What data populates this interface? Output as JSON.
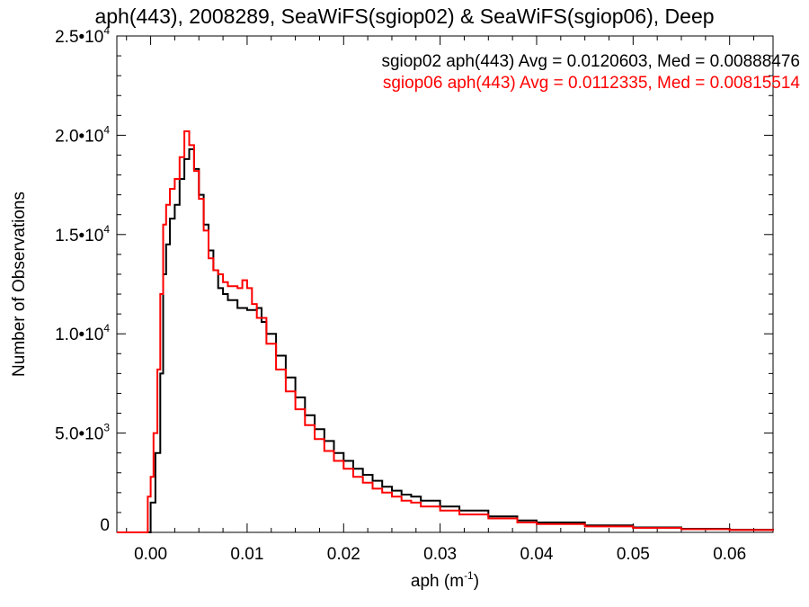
{
  "chart_data": {
    "type": "line",
    "title": "aph(443), 2008289, SeaWiFS(sgiop02) & SeaWiFS(sgiop06), Deep",
    "xlabel": "aph (m",
    "xlabel_exp": "-1",
    "xlabel_close": ")",
    "ylabel": "Number of Observations",
    "xlim": [
      -0.0035,
      0.0645
    ],
    "ylim": [
      0,
      25000
    ],
    "x_ticks": [
      {
        "value": 0.0,
        "label": "0.00"
      },
      {
        "value": 0.01,
        "label": "0.01"
      },
      {
        "value": 0.02,
        "label": "0.02"
      },
      {
        "value": 0.03,
        "label": "0.03"
      },
      {
        "value": 0.04,
        "label": "0.04"
      },
      {
        "value": 0.05,
        "label": "0.05"
      },
      {
        "value": 0.06,
        "label": "0.06"
      }
    ],
    "y_ticks": [
      {
        "value": 0,
        "mant": "0",
        "exp": ""
      },
      {
        "value": 5000,
        "mant": "5.0•10",
        "exp": "3"
      },
      {
        "value": 10000,
        "mant": "1.0•10",
        "exp": "4"
      },
      {
        "value": 15000,
        "mant": "1.5•10",
        "exp": "4"
      },
      {
        "value": 20000,
        "mant": "2.0•10",
        "exp": "4"
      },
      {
        "value": 25000,
        "mant": "2.5•10",
        "exp": "4"
      }
    ],
    "grid": false,
    "legend_position": "top-right",
    "series": [
      {
        "name": "sgiop02 aph(443) Avg = 0.0120603, Med = 0.00888476",
        "color": "#000000",
        "points": [
          [
            -0.0035,
            0
          ],
          [
            -0.0005,
            0
          ],
          [
            0.0,
            1500
          ],
          [
            0.0005,
            4000
          ],
          [
            0.001,
            8000
          ],
          [
            0.0013,
            13000
          ],
          [
            0.0016,
            14500
          ],
          [
            0.002,
            15800
          ],
          [
            0.0025,
            16500
          ],
          [
            0.003,
            17800
          ],
          [
            0.0035,
            18800
          ],
          [
            0.004,
            19300
          ],
          [
            0.0045,
            18300
          ],
          [
            0.005,
            17000
          ],
          [
            0.0055,
            15500
          ],
          [
            0.006,
            14200
          ],
          [
            0.0065,
            13200
          ],
          [
            0.007,
            12300
          ],
          [
            0.0075,
            12000
          ],
          [
            0.008,
            11700
          ],
          [
            0.009,
            11300
          ],
          [
            0.01,
            11200
          ],
          [
            0.011,
            11300
          ],
          [
            0.0115,
            10600
          ],
          [
            0.012,
            10000
          ],
          [
            0.013,
            8900
          ],
          [
            0.014,
            7800
          ],
          [
            0.015,
            6800
          ],
          [
            0.016,
            5900
          ],
          [
            0.017,
            5200
          ],
          [
            0.018,
            4600
          ],
          [
            0.019,
            4000
          ],
          [
            0.02,
            3600
          ],
          [
            0.021,
            3200
          ],
          [
            0.022,
            2900
          ],
          [
            0.023,
            2600
          ],
          [
            0.024,
            2300
          ],
          [
            0.025,
            2100
          ],
          [
            0.026,
            1900
          ],
          [
            0.027,
            1800
          ],
          [
            0.028,
            1600
          ],
          [
            0.03,
            1300
          ],
          [
            0.032,
            1100
          ],
          [
            0.035,
            800
          ],
          [
            0.038,
            600
          ],
          [
            0.04,
            500
          ],
          [
            0.045,
            350
          ],
          [
            0.05,
            250
          ],
          [
            0.055,
            180
          ],
          [
            0.06,
            130
          ],
          [
            0.0645,
            100
          ]
        ]
      },
      {
        "name": "sgiop06 aph(443) Avg = 0.0112335, Med = 0.00815514",
        "color": "#ff0000",
        "points": [
          [
            -0.0035,
            0
          ],
          [
            -0.0008,
            0
          ],
          [
            -0.0003,
            1800
          ],
          [
            0.0,
            2800
          ],
          [
            0.0003,
            5000
          ],
          [
            0.0007,
            8200
          ],
          [
            0.001,
            12000
          ],
          [
            0.0013,
            15500
          ],
          [
            0.0016,
            16500
          ],
          [
            0.002,
            17300
          ],
          [
            0.0025,
            17800
          ],
          [
            0.003,
            18900
          ],
          [
            0.0035,
            20200
          ],
          [
            0.004,
            19500
          ],
          [
            0.0045,
            18200
          ],
          [
            0.005,
            16800
          ],
          [
            0.0055,
            15200
          ],
          [
            0.006,
            13800
          ],
          [
            0.0065,
            13200
          ],
          [
            0.007,
            13000
          ],
          [
            0.0075,
            12600
          ],
          [
            0.008,
            12400
          ],
          [
            0.009,
            12300
          ],
          [
            0.0095,
            12700
          ],
          [
            0.01,
            12300
          ],
          [
            0.0105,
            11500
          ],
          [
            0.011,
            10800
          ],
          [
            0.012,
            9500
          ],
          [
            0.013,
            8200
          ],
          [
            0.014,
            7100
          ],
          [
            0.015,
            6200
          ],
          [
            0.016,
            5400
          ],
          [
            0.017,
            4700
          ],
          [
            0.018,
            4100
          ],
          [
            0.019,
            3600
          ],
          [
            0.02,
            3200
          ],
          [
            0.021,
            2800
          ],
          [
            0.022,
            2500
          ],
          [
            0.023,
            2200
          ],
          [
            0.024,
            2000
          ],
          [
            0.025,
            1800
          ],
          [
            0.026,
            1600
          ],
          [
            0.027,
            1500
          ],
          [
            0.028,
            1300
          ],
          [
            0.03,
            1100
          ],
          [
            0.032,
            900
          ],
          [
            0.035,
            700
          ],
          [
            0.038,
            500
          ],
          [
            0.04,
            420
          ],
          [
            0.045,
            300
          ],
          [
            0.05,
            220
          ],
          [
            0.055,
            160
          ],
          [
            0.06,
            120
          ],
          [
            0.0645,
            90
          ]
        ]
      }
    ]
  }
}
